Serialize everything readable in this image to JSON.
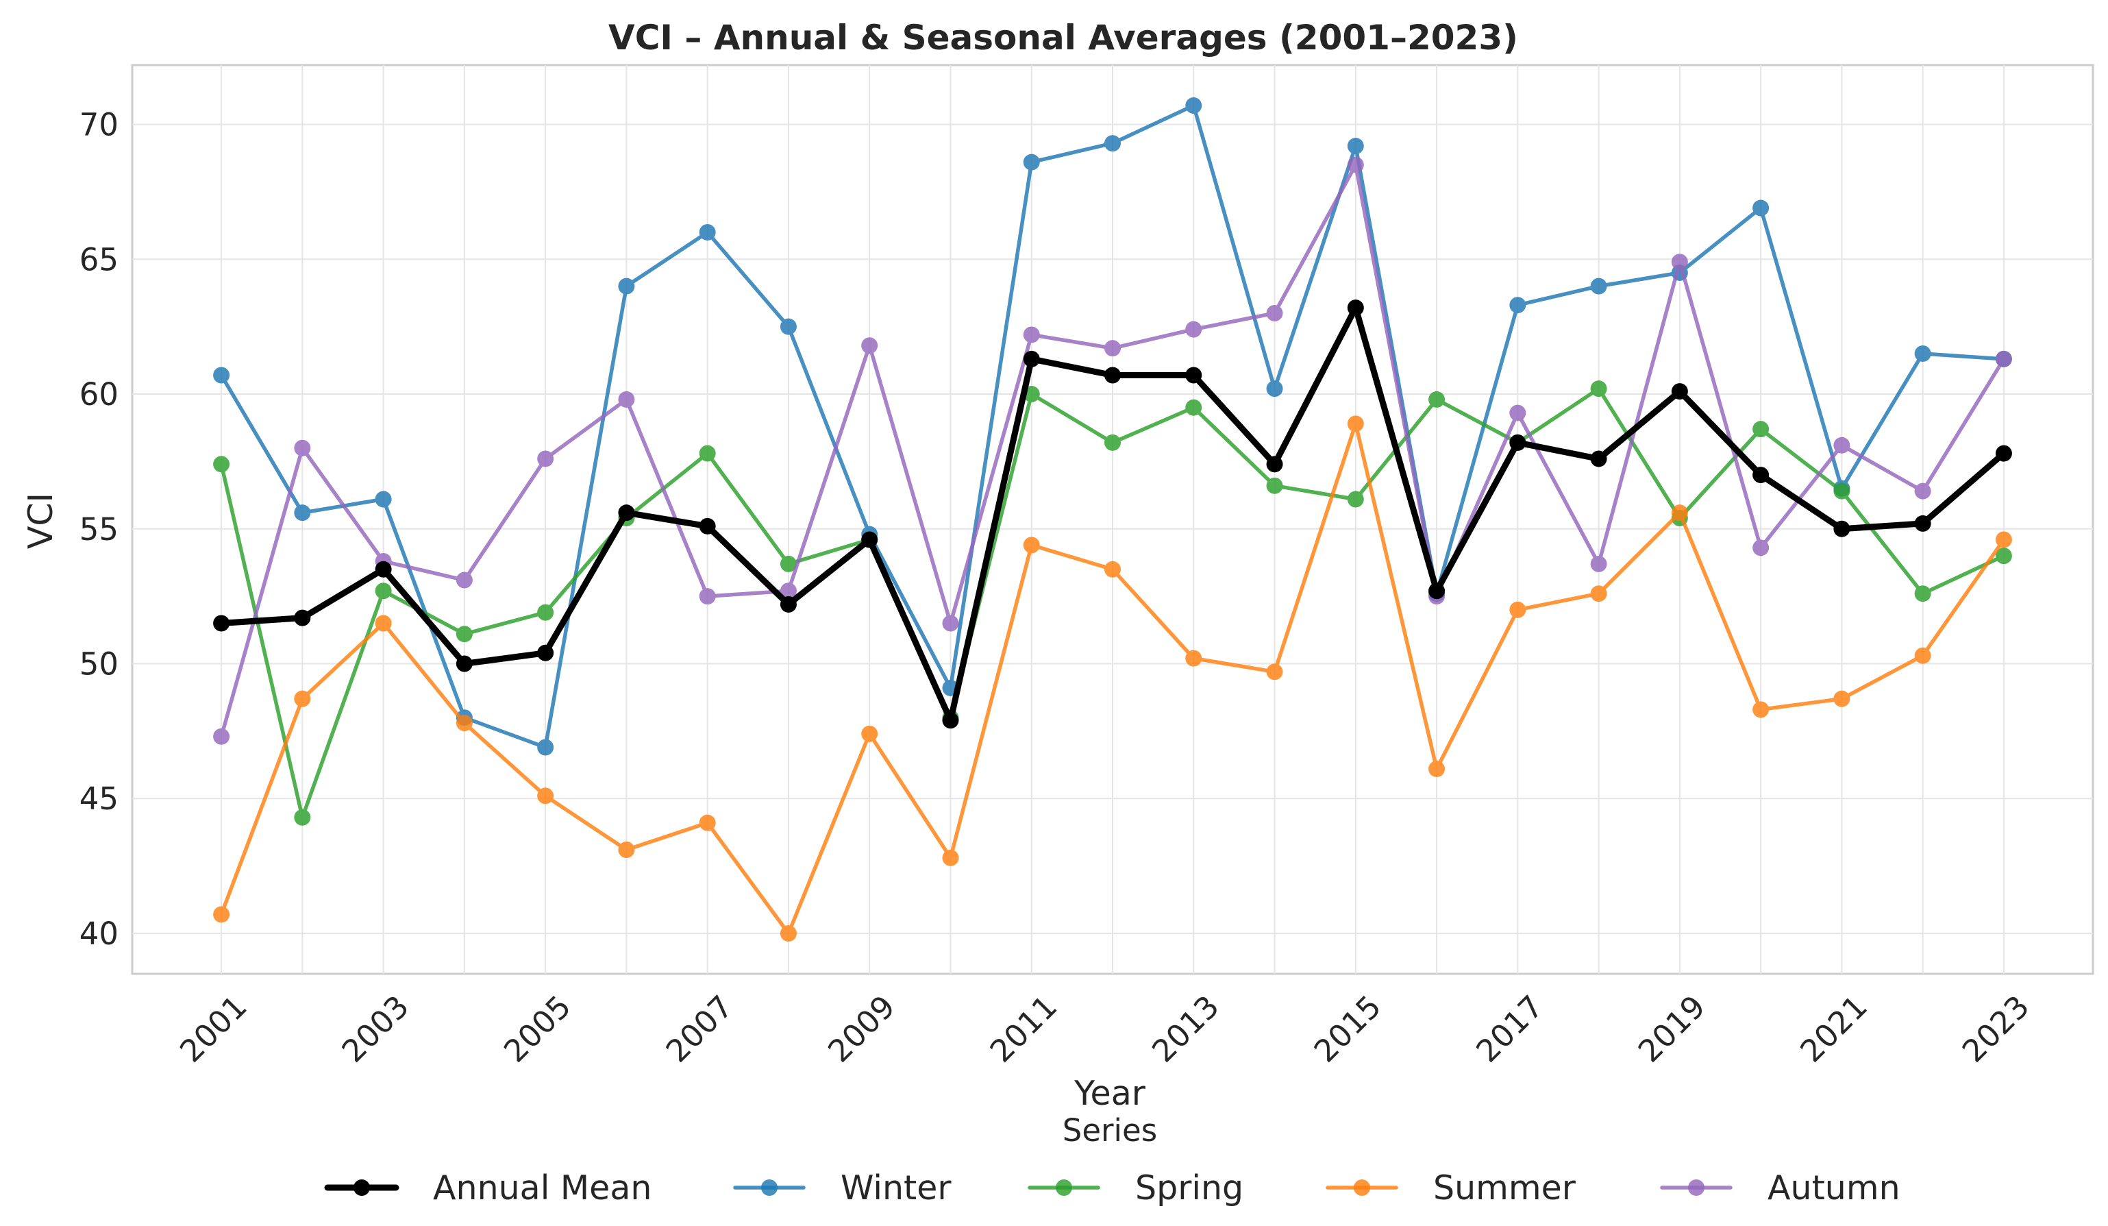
{
  "chart_data": {
    "type": "line",
    "title": "VCI – Annual & Seasonal Averages (2001–2023)",
    "xlabel": "Year",
    "ylabel": "VCI",
    "x": [
      2001,
      2002,
      2003,
      2004,
      2005,
      2006,
      2007,
      2008,
      2009,
      2010,
      2011,
      2012,
      2013,
      2014,
      2015,
      2016,
      2017,
      2018,
      2019,
      2020,
      2021,
      2022,
      2023
    ],
    "xticks": [
      "2001",
      "2003",
      "2005",
      "2007",
      "2009",
      "2011",
      "2013",
      "2015",
      "2017",
      "2019",
      "2021",
      "2023"
    ],
    "xlim": [
      1999.9,
      2024.1
    ],
    "ylim": [
      38.5,
      72.2
    ],
    "yticks": [
      40,
      45,
      50,
      55,
      60,
      65,
      70
    ],
    "grid": true,
    "legend_title": "Series",
    "legend_position": "bottom-center",
    "series": [
      {
        "name": "Winter",
        "color": "#1f77b4",
        "values": [
          60.7,
          55.6,
          56.1,
          48.0,
          46.9,
          64.0,
          66.0,
          62.5,
          54.8,
          49.1,
          68.6,
          69.3,
          70.7,
          60.2,
          69.2,
          52.6,
          63.3,
          64.0,
          64.5,
          66.9,
          56.5,
          61.5,
          61.3
        ]
      },
      {
        "name": "Spring",
        "color": "#2ca02c",
        "values": [
          57.4,
          44.3,
          52.7,
          51.1,
          51.9,
          55.4,
          57.8,
          53.7,
          54.6,
          48.0,
          60.0,
          58.2,
          59.5,
          56.6,
          56.1,
          59.8,
          58.2,
          60.2,
          55.4,
          58.7,
          56.4,
          52.6,
          54.0
        ]
      },
      {
        "name": "Summer",
        "color": "#ff7f0e",
        "values": [
          40.7,
          48.7,
          51.5,
          47.8,
          45.1,
          43.1,
          44.1,
          40.0,
          47.4,
          42.8,
          54.4,
          53.5,
          50.2,
          49.7,
          58.9,
          46.1,
          52.0,
          52.6,
          55.6,
          48.3,
          48.7,
          50.3,
          54.6
        ]
      },
      {
        "name": "Autumn",
        "color": "#9467bd",
        "values": [
          47.3,
          58.0,
          53.8,
          53.1,
          57.6,
          59.8,
          52.5,
          52.7,
          61.8,
          51.5,
          62.2,
          61.7,
          62.4,
          63.0,
          68.5,
          52.5,
          59.3,
          53.7,
          64.9,
          54.3,
          58.1,
          56.4,
          61.3
        ]
      },
      {
        "name": "Annual Mean",
        "color": "#000000",
        "values": [
          51.5,
          51.7,
          53.5,
          50.0,
          50.4,
          55.6,
          55.1,
          52.2,
          54.6,
          47.9,
          61.3,
          60.7,
          60.7,
          57.4,
          63.2,
          52.7,
          58.2,
          57.6,
          60.1,
          57.0,
          55.0,
          55.2,
          57.8
        ]
      }
    ],
    "legend_order": [
      "Annual Mean",
      "Winter",
      "Spring",
      "Summer",
      "Autumn"
    ]
  }
}
